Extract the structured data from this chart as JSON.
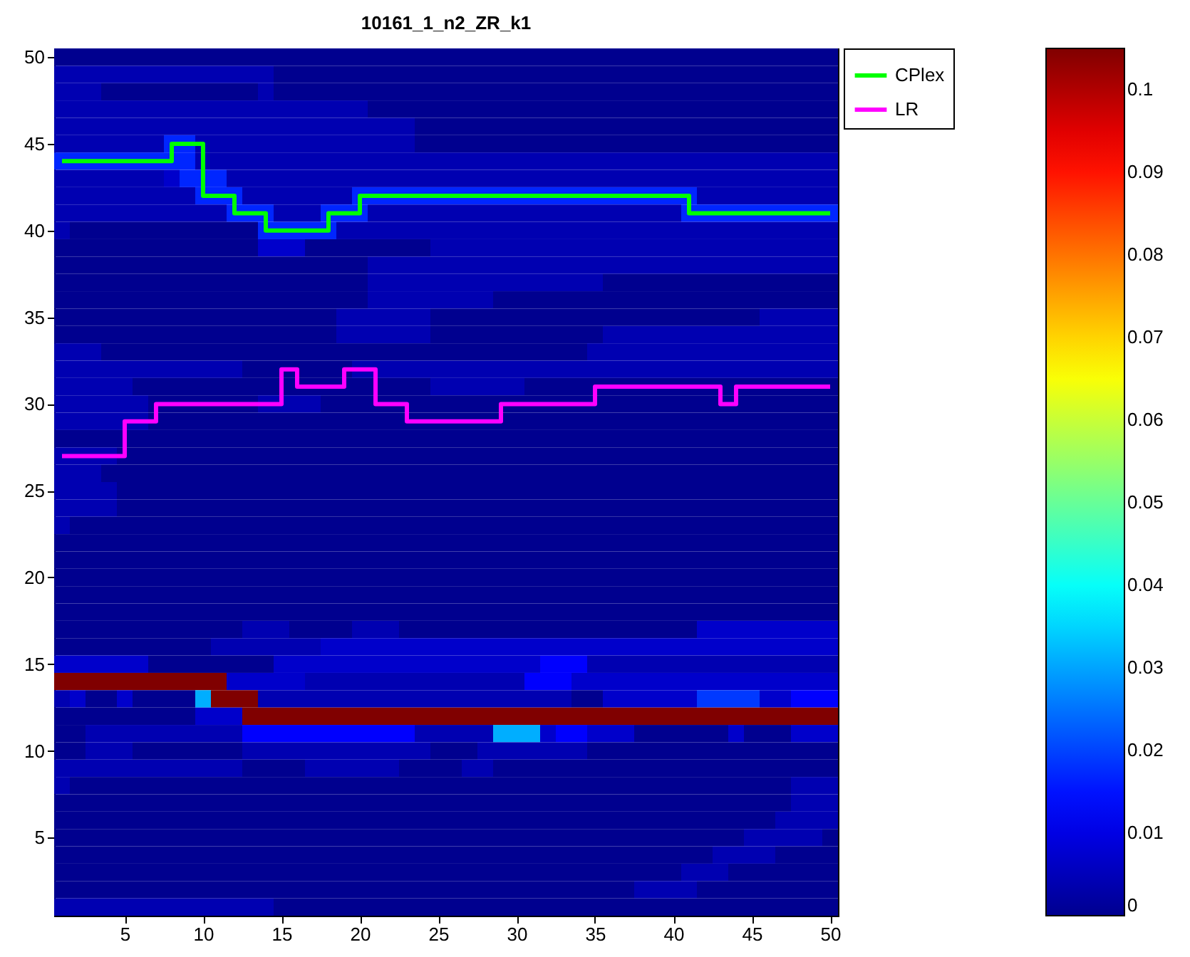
{
  "chart_data": {
    "type": "heatmap",
    "title": "10161_1_n2_ZR_k1",
    "categories": [
      null,
      null,
      null,
      null,
      "5",
      null,
      null,
      null,
      null,
      "10",
      null,
      null,
      null,
      null,
      "15",
      null,
      null,
      null,
      null,
      "20",
      null,
      null,
      null,
      null,
      "25",
      null,
      null,
      null,
      null,
      "30",
      null,
      null,
      null,
      null,
      "35",
      null,
      null,
      null,
      null,
      "40",
      null,
      null,
      null,
      null,
      "45",
      null,
      null,
      null,
      null,
      "50"
    ],
    "ylim": [
      0.5,
      50.5
    ],
    "yticks": [
      5,
      10,
      15,
      20,
      25,
      30,
      35,
      40,
      45,
      50
    ],
    "clim": [
      0,
      0.105
    ],
    "cticks": [
      0,
      0.01,
      0.02,
      0.03,
      0.04,
      0.05,
      0.06,
      0.07,
      0.08,
      0.09,
      0.1
    ],
    "legend": "top right",
    "series": [
      {
        "type": "step",
        "name": "CPlex",
        "color": "#00ff00",
        "values": [
          44,
          44,
          44,
          44,
          44,
          44,
          44,
          45,
          45,
          42,
          42,
          41,
          41,
          40,
          40,
          40,
          40,
          41,
          41,
          42,
          42,
          42,
          42,
          42,
          42,
          42,
          42,
          42,
          42,
          42,
          42,
          42,
          42,
          42,
          42,
          42,
          42,
          42,
          42,
          42,
          41,
          41,
          41,
          41,
          41,
          41,
          41,
          41,
          41,
          41
        ]
      },
      {
        "type": "step",
        "name": "LR",
        "color": "#ff00ff",
        "values": [
          27,
          27,
          27,
          27,
          29,
          29,
          30,
          30,
          30,
          30,
          30,
          30,
          30,
          30,
          32,
          31,
          31,
          31,
          32,
          32,
          30,
          30,
          29,
          29,
          29,
          29,
          29,
          29,
          30,
          30,
          30,
          30,
          30,
          30,
          31,
          31,
          31,
          31,
          31,
          31,
          31,
          31,
          30,
          31,
          31,
          31,
          31,
          31,
          31,
          31
        ]
      }
    ],
    "cells": [
      [
        0,
        0,
        0,
        0,
        0,
        0,
        0,
        0,
        0,
        0,
        0,
        0,
        0,
        0,
        0,
        0,
        0,
        0,
        0,
        0,
        0,
        0,
        0,
        0,
        0,
        0,
        0,
        0,
        0,
        0,
        0,
        0,
        0,
        0,
        0,
        0,
        0,
        0,
        0,
        0,
        0,
        0,
        0,
        0,
        0,
        0,
        0,
        0,
        0,
        0
      ],
      [
        0.004,
        0.004,
        0.004,
        0.004,
        0.004,
        0.004,
        0.004,
        0.004,
        0.004,
        0.004,
        0.004,
        0.004,
        0.004,
        0.004,
        0,
        0,
        0,
        0,
        0,
        0,
        0,
        0,
        0,
        0,
        0,
        0,
        0,
        0,
        0,
        0,
        0,
        0,
        0,
        0,
        0,
        0,
        0,
        0,
        0,
        0,
        0,
        0,
        0,
        0,
        0,
        0,
        0,
        0,
        0,
        0
      ],
      [
        0.004,
        0.004,
        0.004,
        0,
        0,
        0,
        0,
        0,
        0,
        0,
        0,
        0,
        0,
        0.004,
        0,
        0,
        0,
        0,
        0,
        0,
        0,
        0,
        0,
        0,
        0,
        0,
        0,
        0,
        0,
        0,
        0,
        0,
        0,
        0,
        0,
        0,
        0,
        0,
        0,
        0,
        0,
        0,
        0,
        0,
        0,
        0,
        0,
        0,
        0,
        0
      ],
      [
        0.004,
        0.004,
        0.004,
        0.004,
        0.004,
        0.004,
        0.004,
        0.004,
        0.004,
        0.004,
        0.004,
        0.004,
        0.004,
        0.004,
        0.004,
        0.004,
        0.004,
        0.004,
        0.004,
        0.004,
        0,
        0,
        0,
        0,
        0,
        0,
        0,
        0,
        0,
        0,
        0,
        0,
        0,
        0,
        0,
        0,
        0,
        0,
        0,
        0,
        0,
        0,
        0,
        0,
        0,
        0,
        0,
        0,
        0,
        0
      ],
      [
        0.004,
        0.004,
        0.004,
        0.004,
        0.004,
        0.004,
        0.004,
        0.004,
        0.004,
        0.004,
        0.004,
        0.004,
        0.004,
        0.004,
        0.004,
        0.004,
        0.004,
        0.004,
        0.004,
        0.004,
        0.004,
        0.004,
        0.004,
        0,
        0,
        0,
        0,
        0,
        0,
        0,
        0,
        0,
        0,
        0,
        0,
        0,
        0,
        0,
        0,
        0,
        0,
        0,
        0,
        0,
        0,
        0,
        0,
        0,
        0,
        0
      ],
      [
        0.004,
        0.004,
        0.004,
        0.004,
        0.004,
        0.004,
        0.004,
        0.017,
        0.017,
        0.004,
        0.004,
        0.004,
        0.004,
        0.004,
        0.004,
        0.004,
        0.004,
        0.004,
        0.004,
        0.004,
        0.004,
        0.004,
        0.004,
        0,
        0,
        0,
        0,
        0,
        0,
        0,
        0,
        0,
        0,
        0,
        0,
        0,
        0,
        0,
        0,
        0,
        0,
        0,
        0,
        0,
        0,
        0,
        0,
        0,
        0,
        0
      ],
      [
        0.017,
        0.017,
        0.017,
        0.017,
        0.017,
        0.017,
        0.017,
        0.017,
        0.017,
        0.004,
        0.004,
        0.004,
        0.004,
        0.004,
        0.004,
        0.004,
        0.004,
        0.004,
        0.004,
        0.004,
        0.004,
        0.004,
        0.004,
        0.004,
        0.004,
        0.004,
        0.004,
        0.004,
        0.004,
        0.004,
        0.004,
        0.004,
        0.004,
        0.004,
        0.004,
        0.004,
        0.004,
        0.004,
        0.004,
        0.004,
        0.004,
        0.004,
        0.004,
        0.004,
        0.004,
        0.004,
        0.004,
        0.004,
        0.004,
        0.004
      ],
      [
        0.004,
        0.004,
        0.004,
        0.004,
        0.004,
        0.004,
        0.004,
        0.007,
        0.017,
        0.017,
        0.017,
        0.004,
        0.004,
        0.004,
        0.004,
        0.004,
        0.004,
        0.004,
        0.004,
        0.004,
        0.004,
        0.004,
        0.004,
        0.004,
        0.004,
        0.004,
        0.004,
        0.004,
        0.004,
        0.004,
        0.004,
        0.004,
        0.004,
        0.004,
        0.004,
        0.004,
        0.004,
        0.004,
        0.004,
        0.004,
        0.004,
        0.004,
        0.004,
        0.004,
        0.004,
        0.004,
        0.004,
        0.004,
        0.004,
        0.004
      ],
      [
        0.004,
        0.004,
        0.004,
        0.004,
        0.004,
        0.004,
        0.004,
        0.004,
        0.004,
        0.017,
        0.017,
        0.017,
        0.004,
        0.004,
        0.004,
        0.004,
        0.004,
        0.004,
        0.004,
        0.017,
        0.017,
        0.017,
        0.017,
        0.017,
        0.017,
        0.017,
        0.017,
        0.017,
        0.017,
        0.017,
        0.017,
        0.017,
        0.017,
        0.017,
        0.017,
        0.017,
        0.017,
        0.017,
        0.017,
        0.017,
        0.017,
        0.004,
        0.004,
        0.004,
        0.004,
        0.004,
        0.004,
        0.004,
        0.004,
        0.004
      ],
      [
        0.004,
        0.004,
        0.004,
        0.004,
        0.004,
        0.004,
        0.004,
        0.004,
        0.004,
        0.004,
        0.004,
        0.017,
        0.017,
        0.017,
        0.004,
        0.004,
        0.004,
        0.017,
        0.017,
        0.017,
        0.004,
        0.004,
        0.004,
        0.004,
        0.004,
        0.004,
        0.004,
        0.004,
        0.004,
        0.004,
        0.004,
        0.004,
        0.004,
        0.004,
        0.004,
        0.004,
        0.004,
        0.004,
        0.004,
        0.004,
        0.017,
        0.017,
        0.017,
        0.017,
        0.017,
        0.017,
        0.017,
        0.017,
        0.017,
        0.017
      ],
      [
        0.004,
        0,
        0,
        0,
        0,
        0,
        0,
        0,
        0,
        0,
        0,
        0,
        0,
        0.017,
        0.017,
        0.017,
        0.017,
        0.017,
        0.004,
        0.004,
        0.004,
        0.004,
        0.004,
        0.004,
        0.004,
        0.004,
        0.004,
        0.004,
        0.004,
        0.004,
        0.004,
        0.004,
        0.004,
        0.004,
        0.004,
        0.004,
        0.004,
        0.004,
        0.004,
        0.004,
        0.004,
        0.004,
        0.004,
        0.004,
        0.004,
        0.004,
        0.004,
        0.004,
        0.004,
        0.004
      ],
      [
        0,
        0,
        0,
        0,
        0,
        0,
        0,
        0,
        0,
        0,
        0,
        0,
        0,
        0.007,
        0.007,
        0.007,
        0,
        0,
        0,
        0,
        0,
        0,
        0,
        0,
        0.004,
        0.004,
        0.004,
        0.004,
        0.004,
        0.004,
        0.004,
        0.004,
        0.004,
        0.004,
        0.004,
        0.004,
        0.004,
        0.004,
        0.004,
        0.004,
        0.004,
        0.004,
        0.004,
        0.004,
        0.004,
        0.004,
        0.004,
        0.004,
        0.004,
        0.004
      ],
      [
        0,
        0,
        0,
        0,
        0,
        0,
        0,
        0,
        0,
        0,
        0,
        0,
        0,
        0,
        0,
        0,
        0,
        0,
        0,
        0,
        0.004,
        0.004,
        0.004,
        0.004,
        0.004,
        0.004,
        0.004,
        0.004,
        0.004,
        0.004,
        0.004,
        0.004,
        0.004,
        0.004,
        0.004,
        0.004,
        0.004,
        0.004,
        0.004,
        0.004,
        0.004,
        0.004,
        0.004,
        0.004,
        0.004,
        0.004,
        0.004,
        0.004,
        0.004,
        0.004
      ],
      [
        0,
        0,
        0,
        0,
        0,
        0,
        0,
        0,
        0,
        0,
        0,
        0,
        0,
        0,
        0,
        0,
        0,
        0,
        0,
        0,
        0.004,
        0.004,
        0.004,
        0.004,
        0.004,
        0.004,
        0.004,
        0.004,
        0.004,
        0.004,
        0.004,
        0.004,
        0.004,
        0.004,
        0.004,
        0,
        0,
        0,
        0,
        0,
        0,
        0,
        0,
        0,
        0,
        0,
        0,
        0,
        0,
        0
      ],
      [
        0,
        0,
        0,
        0,
        0,
        0,
        0,
        0,
        0,
        0,
        0,
        0,
        0,
        0,
        0,
        0,
        0,
        0,
        0,
        0,
        0.004,
        0.004,
        0.004,
        0.004,
        0.004,
        0.004,
        0.004,
        0.004,
        0,
        0,
        0,
        0,
        0,
        0,
        0,
        0,
        0,
        0,
        0,
        0,
        0,
        0,
        0,
        0,
        0,
        0,
        0,
        0,
        0,
        0
      ],
      [
        0,
        0,
        0,
        0,
        0,
        0,
        0,
        0,
        0,
        0,
        0,
        0,
        0,
        0,
        0,
        0,
        0,
        0,
        0.004,
        0.004,
        0.004,
        0.004,
        0.004,
        0.004,
        0,
        0,
        0,
        0,
        0,
        0,
        0,
        0,
        0,
        0,
        0,
        0,
        0,
        0,
        0,
        0,
        0,
        0,
        0,
        0,
        0,
        0.004,
        0.004,
        0.004,
        0.004,
        0.004
      ],
      [
        0,
        0,
        0,
        0,
        0,
        0,
        0,
        0,
        0,
        0,
        0,
        0,
        0,
        0,
        0,
        0,
        0,
        0,
        0.004,
        0.004,
        0.004,
        0.004,
        0.004,
        0.004,
        0,
        0,
        0,
        0,
        0,
        0,
        0,
        0,
        0,
        0,
        0,
        0.004,
        0.004,
        0.004,
        0.004,
        0.004,
        0.004,
        0.004,
        0.004,
        0.004,
        0.004,
        0.004,
        0.004,
        0.004,
        0.004,
        0.004
      ],
      [
        0.004,
        0.004,
        0.004,
        0,
        0,
        0,
        0,
        0,
        0,
        0,
        0,
        0,
        0,
        0,
        0,
        0,
        0,
        0,
        0,
        0,
        0,
        0,
        0,
        0,
        0,
        0,
        0,
        0,
        0,
        0,
        0,
        0,
        0,
        0,
        0.004,
        0.004,
        0.004,
        0.004,
        0.004,
        0.004,
        0.004,
        0.004,
        0.004,
        0.004,
        0.004,
        0.004,
        0.004,
        0.004,
        0.004,
        0.004
      ],
      [
        0.004,
        0.004,
        0.004,
        0.004,
        0.004,
        0.004,
        0.004,
        0.004,
        0.004,
        0.004,
        0.004,
        0.004,
        0,
        0,
        0,
        0,
        0,
        0,
        0,
        0.004,
        0.004,
        0.004,
        0.004,
        0.004,
        0.004,
        0.004,
        0.004,
        0.004,
        0.004,
        0.004,
        0.004,
        0.004,
        0.004,
        0.004,
        0.004,
        0.004,
        0.004,
        0.004,
        0.004,
        0.004,
        0.004,
        0.004,
        0.004,
        0.004,
        0.004,
        0.004,
        0.004,
        0.004,
        0.004,
        0.004
      ],
      [
        0.004,
        0.004,
        0.004,
        0.004,
        0.004,
        0,
        0,
        0,
        0,
        0,
        0,
        0,
        0,
        0,
        0,
        0,
        0,
        0,
        0,
        0,
        0,
        0,
        0,
        0,
        0.004,
        0.004,
        0.004,
        0.004,
        0.004,
        0.004,
        0,
        0,
        0,
        0,
        0,
        0,
        0,
        0,
        0,
        0,
        0,
        0,
        0,
        0,
        0,
        0,
        0,
        0,
        0,
        0
      ],
      [
        0.004,
        0.004,
        0.004,
        0.004,
        0.004,
        0.004,
        0,
        0,
        0,
        0,
        0,
        0,
        0,
        0.004,
        0.004,
        0.004,
        0.004,
        0,
        0,
        0,
        0,
        0,
        0,
        0,
        0,
        0,
        0,
        0,
        0,
        0,
        0,
        0,
        0,
        0,
        0,
        0,
        0,
        0,
        0,
        0,
        0,
        0,
        0,
        0,
        0,
        0,
        0,
        0,
        0,
        0
      ],
      [
        0.004,
        0.004,
        0.004,
        0.004,
        0.004,
        0.004,
        0,
        0,
        0,
        0,
        0,
        0,
        0,
        0,
        0,
        0,
        0,
        0,
        0,
        0,
        0,
        0,
        0,
        0,
        0,
        0,
        0,
        0,
        0,
        0,
        0,
        0,
        0,
        0,
        0,
        0,
        0,
        0,
        0,
        0,
        0,
        0,
        0,
        0,
        0,
        0,
        0,
        0,
        0,
        0
      ],
      [
        0,
        0,
        0,
        0,
        0,
        0,
        0,
        0,
        0,
        0,
        0,
        0,
        0,
        0,
        0,
        0,
        0,
        0,
        0,
        0,
        0,
        0,
        0,
        0,
        0,
        0,
        0,
        0,
        0,
        0,
        0,
        0,
        0,
        0,
        0,
        0,
        0,
        0,
        0,
        0,
        0,
        0,
        0,
        0,
        0,
        0,
        0,
        0,
        0,
        0
      ],
      [
        0.004,
        0.004,
        0.004,
        0.004,
        0,
        0,
        0,
        0,
        0,
        0,
        0,
        0,
        0,
        0,
        0,
        0,
        0,
        0,
        0,
        0,
        0,
        0,
        0,
        0,
        0,
        0,
        0,
        0,
        0,
        0,
        0,
        0,
        0,
        0,
        0,
        0,
        0,
        0,
        0,
        0,
        0,
        0,
        0,
        0,
        0,
        0,
        0,
        0,
        0,
        0
      ],
      [
        0.004,
        0.004,
        0.004,
        0,
        0,
        0,
        0,
        0,
        0,
        0,
        0,
        0,
        0,
        0,
        0,
        0,
        0,
        0,
        0,
        0,
        0,
        0,
        0,
        0,
        0,
        0,
        0,
        0,
        0,
        0,
        0,
        0,
        0,
        0,
        0,
        0,
        0,
        0,
        0,
        0,
        0,
        0,
        0,
        0,
        0,
        0,
        0,
        0,
        0,
        0
      ],
      [
        0.004,
        0.004,
        0.004,
        0.004,
        0,
        0,
        0,
        0,
        0,
        0,
        0,
        0,
        0,
        0,
        0,
        0,
        0,
        0,
        0,
        0,
        0,
        0,
        0,
        0,
        0,
        0,
        0,
        0,
        0,
        0,
        0,
        0,
        0,
        0,
        0,
        0,
        0,
        0,
        0,
        0,
        0,
        0,
        0,
        0,
        0,
        0,
        0,
        0,
        0,
        0
      ],
      [
        0.004,
        0.004,
        0.004,
        0.004,
        0,
        0,
        0,
        0,
        0,
        0,
        0,
        0,
        0,
        0,
        0,
        0,
        0,
        0,
        0,
        0,
        0,
        0,
        0,
        0,
        0,
        0,
        0,
        0,
        0,
        0,
        0,
        0,
        0,
        0,
        0,
        0,
        0,
        0,
        0,
        0,
        0,
        0,
        0,
        0,
        0,
        0,
        0,
        0,
        0,
        0
      ],
      [
        0.004,
        0,
        0,
        0,
        0,
        0,
        0,
        0,
        0,
        0,
        0,
        0,
        0,
        0,
        0,
        0,
        0,
        0,
        0,
        0,
        0,
        0,
        0,
        0,
        0,
        0,
        0,
        0,
        0,
        0,
        0,
        0,
        0,
        0,
        0,
        0,
        0,
        0,
        0,
        0,
        0,
        0,
        0,
        0,
        0,
        0,
        0,
        0,
        0,
        0
      ],
      [
        0,
        0,
        0,
        0,
        0,
        0,
        0,
        0,
        0,
        0,
        0,
        0,
        0,
        0,
        0,
        0,
        0,
        0,
        0,
        0,
        0,
        0,
        0,
        0,
        0,
        0,
        0,
        0,
        0,
        0,
        0,
        0,
        0,
        0,
        0,
        0,
        0,
        0,
        0,
        0,
        0,
        0,
        0,
        0,
        0,
        0,
        0,
        0,
        0,
        0
      ],
      [
        0,
        0,
        0,
        0,
        0,
        0,
        0,
        0,
        0,
        0,
        0,
        0,
        0,
        0,
        0,
        0,
        0,
        0,
        0,
        0,
        0,
        0,
        0,
        0,
        0,
        0,
        0,
        0,
        0,
        0,
        0,
        0,
        0,
        0,
        0,
        0,
        0,
        0,
        0,
        0,
        0,
        0,
        0,
        0,
        0,
        0,
        0,
        0,
        0,
        0
      ],
      [
        0,
        0,
        0,
        0,
        0,
        0,
        0,
        0,
        0,
        0,
        0,
        0,
        0,
        0,
        0,
        0,
        0,
        0,
        0,
        0,
        0,
        0,
        0,
        0,
        0,
        0,
        0,
        0,
        0,
        0,
        0,
        0,
        0,
        0,
        0,
        0,
        0,
        0,
        0,
        0,
        0,
        0,
        0,
        0,
        0,
        0,
        0,
        0,
        0,
        0
      ],
      [
        0,
        0,
        0,
        0,
        0,
        0,
        0,
        0,
        0,
        0,
        0,
        0,
        0,
        0,
        0,
        0,
        0,
        0,
        0,
        0,
        0,
        0,
        0,
        0,
        0,
        0,
        0,
        0,
        0,
        0,
        0,
        0,
        0,
        0,
        0,
        0,
        0,
        0,
        0,
        0,
        0,
        0,
        0,
        0,
        0,
        0,
        0,
        0,
        0,
        0
      ],
      [
        0,
        0,
        0,
        0,
        0,
        0,
        0,
        0,
        0,
        0,
        0,
        0,
        0,
        0,
        0,
        0,
        0,
        0,
        0,
        0,
        0,
        0,
        0,
        0,
        0,
        0,
        0,
        0,
        0,
        0,
        0,
        0,
        0,
        0,
        0,
        0,
        0,
        0,
        0,
        0,
        0,
        0,
        0,
        0,
        0,
        0,
        0,
        0,
        0,
        0
      ],
      [
        0,
        0,
        0,
        0,
        0,
        0,
        0,
        0,
        0,
        0,
        0,
        0,
        0.004,
        0.004,
        0.004,
        0,
        0,
        0,
        0,
        0.004,
        0.004,
        0.004,
        0,
        0,
        0,
        0,
        0,
        0,
        0,
        0,
        0,
        0,
        0,
        0,
        0,
        0,
        0,
        0,
        0,
        0,
        0,
        0.007,
        0.007,
        0.007,
        0.007,
        0.007,
        0.007,
        0.007,
        0.007,
        0.007
      ],
      [
        0,
        0,
        0,
        0,
        0,
        0,
        0,
        0,
        0,
        0,
        0.004,
        0.004,
        0.004,
        0.004,
        0.004,
        0.004,
        0.004,
        0.007,
        0.007,
        0.007,
        0.007,
        0.007,
        0.007,
        0.007,
        0.007,
        0.007,
        0.007,
        0.007,
        0.007,
        0.007,
        0.007,
        0.007,
        0.007,
        0.007,
        0.007,
        0.007,
        0.007,
        0.007,
        0.007,
        0.007,
        0.007,
        0.007,
        0.007,
        0.007,
        0.007,
        0.007,
        0.007,
        0.007,
        0.007,
        0.007
      ],
      [
        0.007,
        0.007,
        0.007,
        0.007,
        0.007,
        0.007,
        0,
        0,
        0,
        0,
        0,
        0,
        0,
        0,
        0.007,
        0.007,
        0.007,
        0.007,
        0.007,
        0.007,
        0.007,
        0.007,
        0.007,
        0.007,
        0.007,
        0.007,
        0.007,
        0.007,
        0.007,
        0.007,
        0.007,
        0.013,
        0.013,
        0.013,
        0.004,
        0.004,
        0.004,
        0.004,
        0.004,
        0.004,
        0.004,
        0.004,
        0.004,
        0.004,
        0.004,
        0.004,
        0.004,
        0.004,
        0.004,
        0.004
      ],
      [
        0.105,
        0.105,
        0.105,
        0.105,
        0.105,
        0.105,
        0.105,
        0.105,
        0.105,
        0.105,
        0.105,
        0.007,
        0.007,
        0.007,
        0.007,
        0.007,
        0.004,
        0.004,
        0.004,
        0.004,
        0.004,
        0.004,
        0.004,
        0.004,
        0.004,
        0.004,
        0.004,
        0.004,
        0.004,
        0.004,
        0.013,
        0.013,
        0.013,
        0.007,
        0.007,
        0.007,
        0.007,
        0.007,
        0.007,
        0.007,
        0.007,
        0.007,
        0.007,
        0.007,
        0.007,
        0.007,
        0.007,
        0.007,
        0.007,
        0.007
      ],
      [
        0.004,
        0.007,
        0,
        0,
        0.007,
        0,
        0,
        0,
        0,
        0.031,
        0.105,
        0.105,
        0.105,
        0.004,
        0.004,
        0.004,
        0.004,
        0.004,
        0.004,
        0.004,
        0.004,
        0.004,
        0.004,
        0.004,
        0.004,
        0.004,
        0.004,
        0.004,
        0.004,
        0.004,
        0.004,
        0.004,
        0.004,
        0,
        0,
        0.007,
        0.007,
        0.007,
        0.007,
        0.007,
        0.007,
        0.019,
        0.019,
        0.019,
        0.019,
        0.007,
        0.007,
        0.013,
        0.013,
        0.013
      ],
      [
        0,
        0,
        0,
        0,
        0,
        0,
        0,
        0,
        0,
        0.007,
        0.007,
        0.007,
        0.105,
        0.105,
        0.105,
        0.105,
        0.105,
        0.105,
        0.105,
        0.105,
        0.105,
        0.105,
        0.105,
        0.105,
        0.105,
        0.105,
        0.105,
        0.105,
        0.105,
        0.105,
        0.105,
        0.105,
        0.105,
        0.105,
        0.105,
        0.105,
        0.105,
        0.105,
        0.105,
        0.105,
        0.105,
        0.105,
        0.105,
        0.105,
        0.105,
        0.105,
        0.105,
        0.105,
        0.105,
        0.105
      ],
      [
        0,
        0,
        0.004,
        0.004,
        0.004,
        0.004,
        0.004,
        0.004,
        0.004,
        0.004,
        0.004,
        0.004,
        0.013,
        0.013,
        0.013,
        0.013,
        0.013,
        0.013,
        0.013,
        0.013,
        0.013,
        0.013,
        0.013,
        0.004,
        0.004,
        0.004,
        0.004,
        0.004,
        0.031,
        0.031,
        0.031,
        0.007,
        0.013,
        0.013,
        0.007,
        0.007,
        0.007,
        0,
        0,
        0,
        0,
        0,
        0,
        0.007,
        0,
        0,
        0,
        0.007,
        0.007,
        0.007
      ],
      [
        0,
        0,
        0.004,
        0.004,
        0.004,
        0,
        0,
        0,
        0,
        0,
        0,
        0,
        0.004,
        0.004,
        0.004,
        0.004,
        0.004,
        0.004,
        0.004,
        0.004,
        0.004,
        0.004,
        0.004,
        0.004,
        0,
        0,
        0,
        0.004,
        0.004,
        0.004,
        0.004,
        0.004,
        0.004,
        0.004,
        0,
        0,
        0,
        0,
        0,
        0,
        0,
        0,
        0,
        0,
        0,
        0,
        0,
        0,
        0,
        0
      ],
      [
        0.004,
        0.004,
        0.004,
        0.004,
        0.004,
        0.004,
        0.004,
        0.004,
        0.004,
        0.004,
        0.004,
        0.004,
        0,
        0,
        0,
        0,
        0.004,
        0.004,
        0.004,
        0.004,
        0.004,
        0.004,
        0,
        0,
        0,
        0,
        0.004,
        0.004,
        0,
        0,
        0,
        0,
        0,
        0,
        0,
        0,
        0,
        0,
        0,
        0,
        0,
        0,
        0,
        0,
        0,
        0,
        0,
        0,
        0,
        0
      ],
      [
        0.004,
        0,
        0,
        0,
        0,
        0,
        0,
        0,
        0,
        0,
        0,
        0,
        0,
        0,
        0,
        0,
        0,
        0,
        0,
        0,
        0,
        0,
        0,
        0,
        0,
        0,
        0,
        0,
        0,
        0,
        0,
        0,
        0,
        0,
        0,
        0,
        0,
        0,
        0,
        0,
        0,
        0,
        0,
        0,
        0,
        0,
        0,
        0.004,
        0.004,
        0.004
      ],
      [
        0,
        0,
        0,
        0,
        0,
        0,
        0,
        0,
        0,
        0,
        0,
        0,
        0,
        0,
        0,
        0,
        0,
        0,
        0,
        0,
        0,
        0,
        0,
        0,
        0,
        0,
        0,
        0,
        0,
        0,
        0,
        0,
        0,
        0,
        0,
        0,
        0,
        0,
        0,
        0,
        0,
        0,
        0,
        0,
        0,
        0,
        0,
        0.004,
        0.004,
        0.004
      ],
      [
        0,
        0,
        0,
        0,
        0,
        0,
        0,
        0,
        0,
        0,
        0,
        0,
        0,
        0,
        0,
        0,
        0,
        0,
        0,
        0,
        0,
        0,
        0,
        0,
        0,
        0,
        0,
        0,
        0,
        0,
        0,
        0,
        0,
        0,
        0,
        0,
        0,
        0,
        0,
        0,
        0,
        0,
        0,
        0,
        0,
        0,
        0.004,
        0.004,
        0.004,
        0.004
      ],
      [
        0,
        0,
        0,
        0,
        0,
        0,
        0,
        0,
        0,
        0,
        0,
        0,
        0,
        0,
        0,
        0,
        0,
        0,
        0,
        0,
        0,
        0,
        0,
        0,
        0,
        0,
        0,
        0,
        0,
        0,
        0,
        0,
        0,
        0,
        0,
        0,
        0,
        0,
        0,
        0,
        0,
        0,
        0,
        0,
        0.004,
        0.004,
        0.004,
        0.004,
        0.004,
        0
      ],
      [
        0,
        0,
        0,
        0,
        0,
        0,
        0,
        0,
        0,
        0,
        0,
        0,
        0,
        0,
        0,
        0,
        0,
        0,
        0,
        0,
        0,
        0,
        0,
        0,
        0,
        0,
        0,
        0,
        0,
        0,
        0,
        0,
        0,
        0,
        0,
        0,
        0,
        0,
        0,
        0,
        0,
        0,
        0.004,
        0.004,
        0.004,
        0.004,
        0,
        0,
        0,
        0
      ],
      [
        0,
        0,
        0,
        0,
        0,
        0,
        0,
        0,
        0,
        0,
        0,
        0,
        0,
        0,
        0,
        0,
        0,
        0,
        0,
        0,
        0,
        0,
        0,
        0,
        0,
        0,
        0,
        0,
        0,
        0,
        0,
        0,
        0,
        0,
        0,
        0,
        0,
        0,
        0,
        0,
        0.004,
        0.004,
        0.004,
        0,
        0,
        0,
        0,
        0,
        0,
        0
      ],
      [
        0,
        0,
        0,
        0,
        0,
        0,
        0,
        0,
        0,
        0,
        0,
        0,
        0,
        0,
        0,
        0,
        0,
        0,
        0,
        0,
        0,
        0,
        0,
        0,
        0,
        0,
        0,
        0,
        0,
        0,
        0,
        0,
        0,
        0,
        0,
        0,
        0,
        0.004,
        0.004,
        0.004,
        0.004,
        0,
        0,
        0,
        0,
        0,
        0,
        0,
        0,
        0
      ],
      [
        0.004,
        0.004,
        0.004,
        0.004,
        0.004,
        0.004,
        0.004,
        0.004,
        0.004,
        0.004,
        0.004,
        0.004,
        0.004,
        0.004,
        0,
        0,
        0,
        0,
        0,
        0,
        0,
        0,
        0,
        0,
        0,
        0,
        0,
        0,
        0,
        0,
        0,
        0,
        0,
        0,
        0,
        0,
        0,
        0,
        0,
        0,
        0,
        0,
        0,
        0,
        0,
        0,
        0,
        0,
        0,
        0
      ]
    ]
  }
}
